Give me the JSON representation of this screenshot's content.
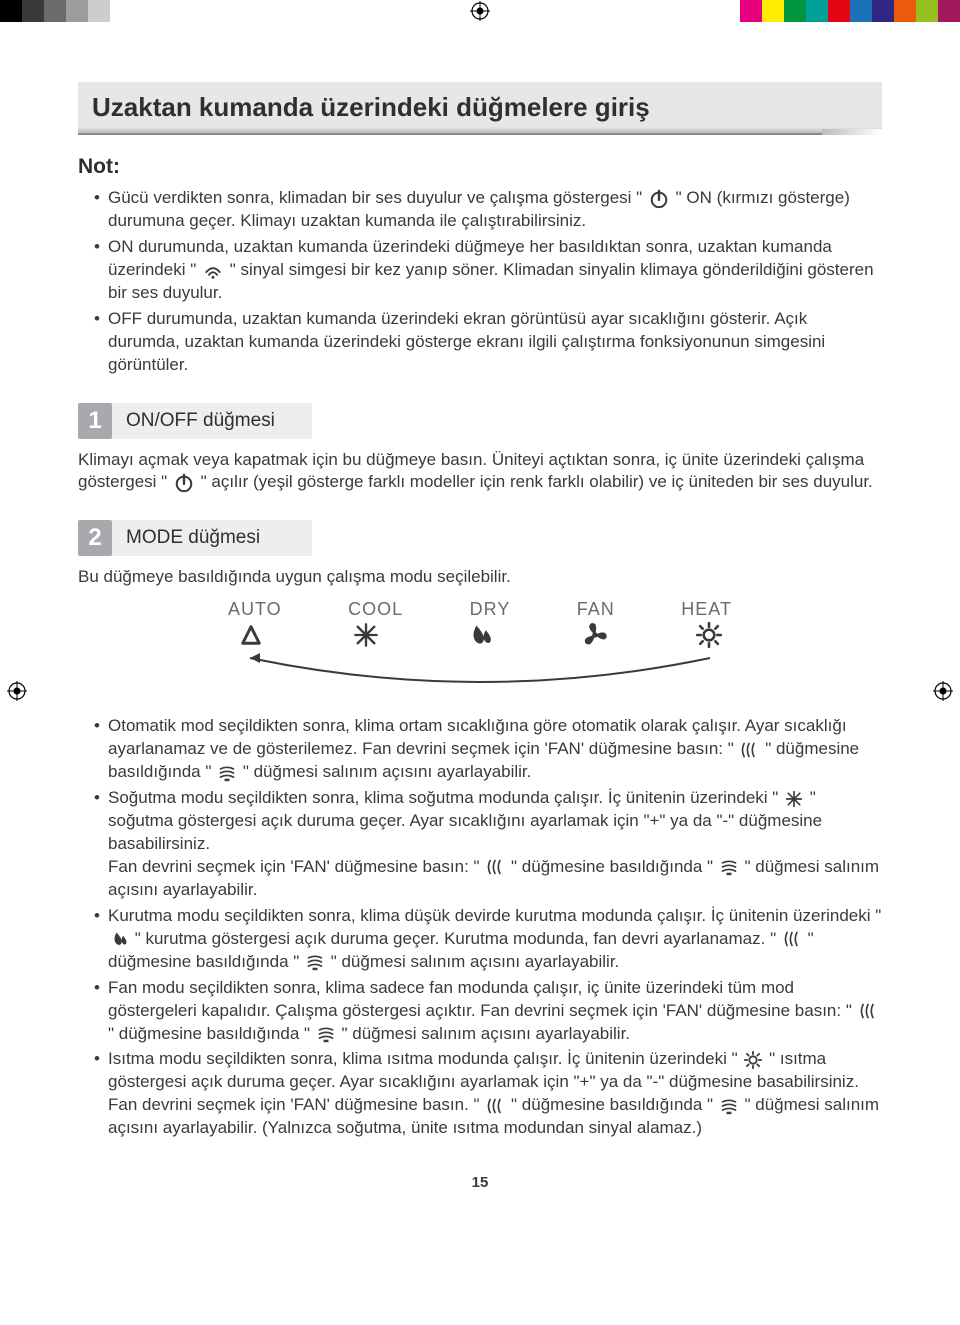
{
  "colorbar_left": [
    "#000000",
    "#3a3a3a",
    "#6b6b6b",
    "#9c9c9c",
    "#cdcdcd",
    "#ffffff"
  ],
  "colorbar_right": [
    "#e6007e",
    "#ffed00",
    "#009640",
    "#00a19a",
    "#e30613",
    "#1d71b8",
    "#312783",
    "#ea5b0c",
    "#95c11f",
    "#a3195b"
  ],
  "title": "Uzaktan kumanda üzerindeki düğmelere giriş",
  "note_heading": "Not:",
  "notes": [
    {
      "pre": "Gücü verdikten sonra, klimadan bir ses duyulur ve çalışma göstergesi \" ",
      "icon": "power",
      "post": " \" ON (kırmızı gösterge) durumuna geçer. Klimayı uzaktan kumanda ile çalıştırabilirsiniz."
    },
    {
      "pre": "ON durumunda, uzaktan kumanda üzerindeki düğmeye her basıldıktan sonra, uzaktan kumanda üzerindeki \" ",
      "icon": "signal",
      "post": " \" sinyal simgesi bir kez yanıp söner. Klimadan sinyalin klimaya gönderildiğini gösteren bir ses duyulur."
    },
    {
      "pre": "OFF durumunda, uzaktan kumanda üzerindeki ekran görüntüsü ayar sıcaklığını gösterir. Açık durumda, uzaktan kumanda üzerindeki gösterge ekranı ilgili çalıştırma fonksiyonunun simgesini görüntüler.",
      "icon": null,
      "post": ""
    }
  ],
  "sections": [
    {
      "num": "1",
      "label": "ON/OFF düğmesi",
      "paras": [
        {
          "pre": "Klimayı açmak veya kapatmak için bu düğmeye basın. Üniteyi açtıktan sonra, iç ünite üzerindeki çalışma göstergesi \" ",
          "icon": "power",
          "post": " \" açılır (yeşil gösterge farklı modeller için renk farklı olabilir) ve iç üniteden bir ses duyulur."
        }
      ]
    },
    {
      "num": "2",
      "label": "MODE düğmesi",
      "paras": [
        {
          "pre": "Bu düğmeye basıldığında uygun çalışma modu seçilebilir.",
          "icon": null,
          "post": ""
        }
      ]
    }
  ],
  "mode_diagram": {
    "labels": [
      "AUTO",
      "COOL",
      "DRY",
      "FAN",
      "HEAT"
    ],
    "icons": [
      "auto",
      "cool",
      "dry",
      "fan",
      "heat"
    ],
    "label_color": "#6b6b6e",
    "icon_color": "#3a3a3a",
    "arc_color": "#3a3a3a"
  },
  "mode_bullets": [
    [
      {
        "t": "Otomatik mod seçildikten sonra, klima ortam sıcaklığına göre otomatik olarak çalışır. Ayar sıcaklığı ayarlanamaz ve de gösterilemez. Fan devrini seçmek için 'FAN' düğmesine basın: \" "
      },
      {
        "i": "swingv"
      },
      {
        "t": " \" düğmesine basıldığında \" "
      },
      {
        "i": "swingh"
      },
      {
        "t": " \" düğmesi salınım açısını ayarlayabilir."
      }
    ],
    [
      {
        "t": "Soğutma modu seçildikten sonra, klima soğutma modunda çalışır. İç ünitenin üzerindeki \" "
      },
      {
        "i": "cool"
      },
      {
        "t": " \" soğutma göstergesi açık duruma geçer. Ayar sıcaklığını ayarlamak için \"+\" ya da \"-\" düğmesine basabilirsiniz."
      },
      {
        "br": 1
      },
      {
        "t": "Fan devrini seçmek için 'FAN' düğmesine basın: \" "
      },
      {
        "i": "swingv"
      },
      {
        "t": " \" düğmesine basıldığında \" "
      },
      {
        "i": "swingh"
      },
      {
        "t": " \" düğmesi salınım açısını ayarlayabilir."
      }
    ],
    [
      {
        "t": "Kurutma modu seçildikten sonra, klima düşük devirde kurutma modunda çalışır. İç ünitenin üzerindeki \" "
      },
      {
        "i": "dry"
      },
      {
        "t": " \" kurutma göstergesi açık duruma geçer. Kurutma modunda, fan devri ayarlanamaz. \" "
      },
      {
        "i": "swingv"
      },
      {
        "t": " \" düğmesine basıldığında \" "
      },
      {
        "i": "swingh"
      },
      {
        "t": " \" düğmesi salınım açısını ayarlayabilir."
      }
    ],
    [
      {
        "t": "Fan modu seçildikten sonra, klima sadece fan modunda çalışır, iç ünite üzerindeki tüm mod göstergeleri kapalıdır. Çalışma göstergesi açıktır. Fan devrini seçmek için 'FAN' düğmesine basın: \" "
      },
      {
        "i": "swingv"
      },
      {
        "t": " \" düğmesine basıldığında \" "
      },
      {
        "i": "swingh"
      },
      {
        "t": " \" düğmesi salınım açısını ayarlayabilir."
      }
    ],
    [
      {
        "t": "Isıtma modu seçildikten sonra, klima ısıtma modunda çalışır. İç ünitenin üzerindeki \" "
      },
      {
        "i": "heat"
      },
      {
        "t": " \" ısıtma göstergesi açık duruma geçer. Ayar sıcaklığını ayarlamak için \"+\" ya da \"-\" düğmesine basabilirsiniz."
      },
      {
        "br": 1
      },
      {
        "t": "Fan devrini seçmek için 'FAN' düğmesine basın. \" "
      },
      {
        "i": "swingv"
      },
      {
        "t": " \" düğmesine basıldığında \" "
      },
      {
        "i": "swingh"
      },
      {
        "t": " \" düğmesi salınım açısını ayarlayabilir. (Yalnızca soğutma, ünite ısıtma modundan sinyal alamaz.)"
      }
    ]
  ],
  "page_number": "15"
}
